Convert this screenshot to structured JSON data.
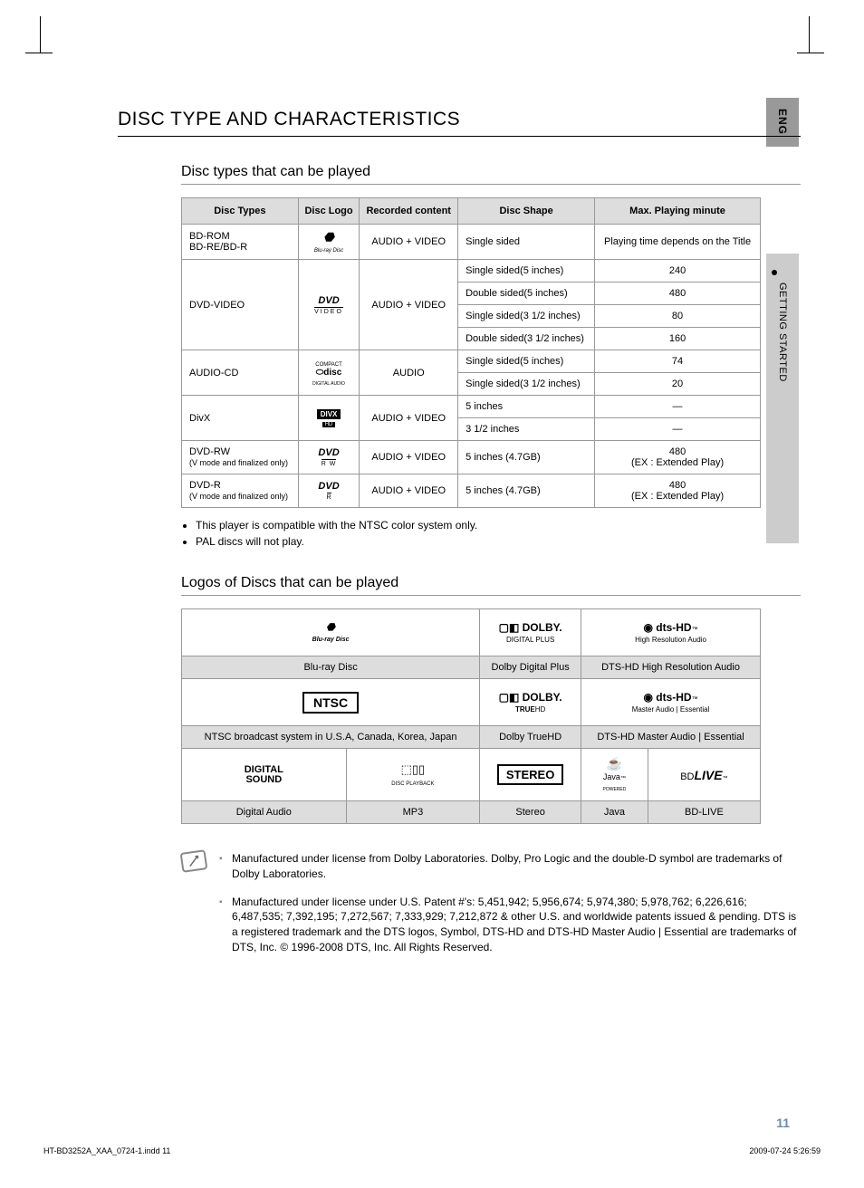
{
  "sideTab": {
    "lang": "ENG",
    "section": "GETTING STARTED"
  },
  "h1": "DISC TYPE AND CHARACTERISTICS",
  "h2a": "Disc types that can be played",
  "table1": {
    "headers": [
      "Disc Types",
      "Disc Logo",
      "Recorded content",
      "Disc Shape",
      "Max. Playing minute"
    ],
    "rows": [
      {
        "type": "BD-ROM\nBD-RE/BD-R",
        "logo": "Blu-ray Disc",
        "content": "AUDIO + VIDEO",
        "shape": [
          "Single sided"
        ],
        "time": [
          "Playing time depends on the Title"
        ]
      },
      {
        "type": "DVD-VIDEO",
        "logo": "DVD VIDEO",
        "content": "AUDIO + VIDEO",
        "shape": [
          "Single sided(5 inches)",
          "Double sided(5 inches)",
          "Single sided(3 1/2 inches)",
          "Double sided(3 1/2 inches)"
        ],
        "time": [
          "240",
          "480",
          "80",
          "160"
        ]
      },
      {
        "type": "AUDIO-CD",
        "logo": "COMPACT disc DIGITAL AUDIO",
        "content": "AUDIO",
        "shape": [
          "Single sided(5 inches)",
          "Single sided(3 1/2 inches)"
        ],
        "time": [
          "74",
          "20"
        ]
      },
      {
        "type": "DivX",
        "logo": "DIVX HD",
        "content": "AUDIO + VIDEO",
        "shape": [
          "5 inches",
          "3 1/2 inches"
        ],
        "time": [
          "—",
          "—"
        ]
      },
      {
        "type": "DVD-RW",
        "typeSub": "(V mode and finalized only)",
        "logo": "DVD RW",
        "content": "AUDIO + VIDEO",
        "shape": [
          "5 inches (4.7GB)"
        ],
        "time": [
          "480\n(EX : Extended Play)"
        ]
      },
      {
        "type": "DVD-R",
        "typeSub": "(V mode and finalized only)",
        "logo": "DVD R",
        "content": "AUDIO + VIDEO",
        "shape": [
          "5 inches (4.7GB)"
        ],
        "time": [
          "480\n(EX : Extended Play)"
        ]
      }
    ]
  },
  "bullets": [
    "This player is compatible with the NTSC color system only.",
    "PAL discs will not play."
  ],
  "h2b": "Logos of Discs that can be played",
  "logos": {
    "row1": [
      {
        "logo": "Blu-ray Disc",
        "caption": "Blu-ray Disc"
      },
      {
        "logo": "DOLBY DIGITAL PLUS",
        "caption": "Dolby Digital Plus"
      },
      {
        "logo": "dts-HD High Resolution Audio",
        "caption": "DTS-HD High Resolution Audio"
      }
    ],
    "row2": [
      {
        "logo": "NTSC",
        "caption": "NTSC broadcast system in U.S.A, Canada, Korea, Japan"
      },
      {
        "logo": "DOLBY TRUEHD",
        "caption": "Dolby TrueHD"
      },
      {
        "logo": "dts-HD Master Audio | Essential",
        "caption": "DTS-HD Master Audio | Essential"
      }
    ],
    "row3": [
      {
        "logo": "DIGITAL SOUND",
        "caption": "Digital Audio"
      },
      {
        "logo": "MP3",
        "caption": "MP3"
      },
      {
        "logo": "STEREO",
        "caption": "Stereo"
      },
      {
        "logo": "Java",
        "caption": "Java"
      },
      {
        "logo": "BD LIVE",
        "caption": "BD-LIVE"
      }
    ]
  },
  "notes": [
    "Manufactured under license from Dolby Laboratories. Dolby, Pro Logic and the double-D symbol are trademarks of Dolby Laboratories.",
    "Manufactured under license under U.S. Patent #'s: 5,451,942; 5,956,674; 5,974,380; 5,978,762; 6,226,616; 6,487,535; 7,392,195; 7,272,567; 7,333,929; 7,212,872 & other U.S. and worldwide patents issued & pending. DTS is a registered trademark and the DTS logos, Symbol, DTS-HD and DTS-HD Master Audio | Essential are trademarks of DTS, Inc. © 1996-2008 DTS, Inc. All Rights Reserved."
  ],
  "pageNum": "11",
  "footer": {
    "left": "HT-BD3252A_XAA_0724-1.indd   11",
    "right": "2009-07-24     5:26:59"
  }
}
